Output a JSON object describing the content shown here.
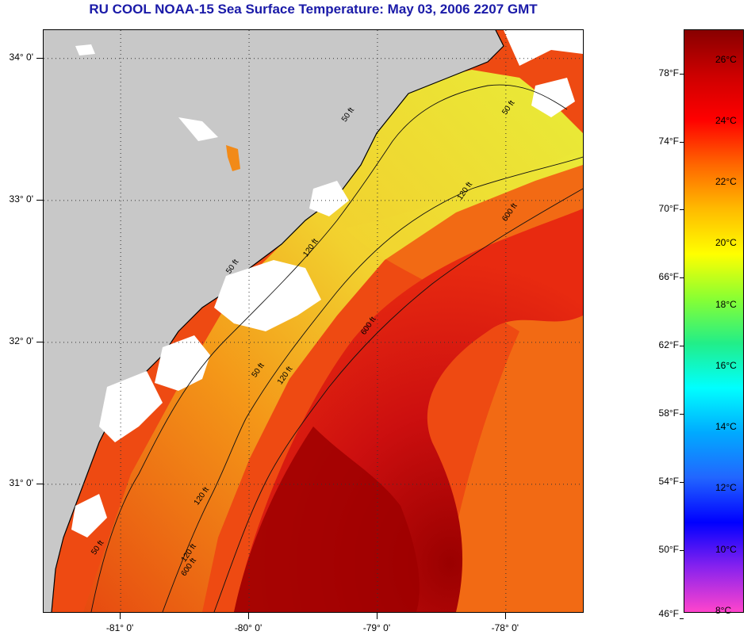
{
  "title": "RU COOL  NOAA-15  Sea Surface Temperature:  May 03, 2006 2207 GMT",
  "map": {
    "lon_range": [
      -81.6,
      -77.4
    ],
    "lat_range": [
      30.1,
      34.2
    ],
    "lat_labels": [
      "34° 0'",
      "33° 0'",
      "32° 0'",
      "31° 0'"
    ],
    "lat_values": [
      34,
      33,
      32,
      31
    ],
    "lon_labels": [
      "-81° 0'",
      "-80° 0'",
      "-79° 0'",
      "-78° 0'"
    ],
    "lon_values": [
      -81,
      -80,
      -79,
      -78
    ],
    "land_color": "#c8c8c8",
    "cloud_color": "#ffffff",
    "contour_labels": [
      {
        "text": "50 ft",
        "lon": -79.95,
        "lat": 31.75
      },
      {
        "text": "50 ft",
        "lon": -80.15,
        "lat": 32.48
      },
      {
        "text": "50 ft",
        "lon": -79.25,
        "lat": 33.55
      },
      {
        "text": "50 ft",
        "lon": -78.0,
        "lat": 33.6
      },
      {
        "text": "50 ft",
        "lon": -81.2,
        "lat": 30.5
      },
      {
        "text": "120 ft",
        "lon": -79.75,
        "lat": 31.7
      },
      {
        "text": "120 ft",
        "lon": -80.4,
        "lat": 30.85
      },
      {
        "text": "120 ft",
        "lon": -80.5,
        "lat": 30.45
      },
      {
        "text": "120 ft",
        "lon": -79.55,
        "lat": 32.6
      },
      {
        "text": "120 ft",
        "lon": -78.35,
        "lat": 33.0
      },
      {
        "text": "600 ft",
        "lon": -79.1,
        "lat": 32.05
      },
      {
        "text": "600 ft",
        "lon": -78.0,
        "lat": 32.85
      },
      {
        "text": "600 ft",
        "lon": -80.5,
        "lat": 30.35
      }
    ]
  },
  "colorbar": {
    "temp_min_c": 8,
    "temp_max_c": 27,
    "f_labels": [
      "78°F",
      "74°F",
      "70°F",
      "66°F",
      "62°F",
      "58°F",
      "54°F",
      "50°F",
      "46°F"
    ],
    "f_values": [
      78,
      74,
      70,
      66,
      62,
      58,
      54,
      50,
      46
    ],
    "c_labels": [
      "26°C",
      "24°C",
      "22°C",
      "20°C",
      "18°C",
      "16°C",
      "14°C",
      "12°C",
      "10°C",
      "8°C"
    ],
    "c_values": [
      26,
      24,
      22,
      20,
      18,
      16,
      14,
      12,
      10,
      8
    ],
    "colors_bottom_to_top": [
      "#ff44cc",
      "#8822ee",
      "#0000ff",
      "#2266ff",
      "#00aaff",
      "#00ffff",
      "#22ee88",
      "#88ff33",
      "#ffff00",
      "#ffbb00",
      "#ff6600",
      "#ff0000",
      "#cc0000",
      "#880000"
    ]
  }
}
